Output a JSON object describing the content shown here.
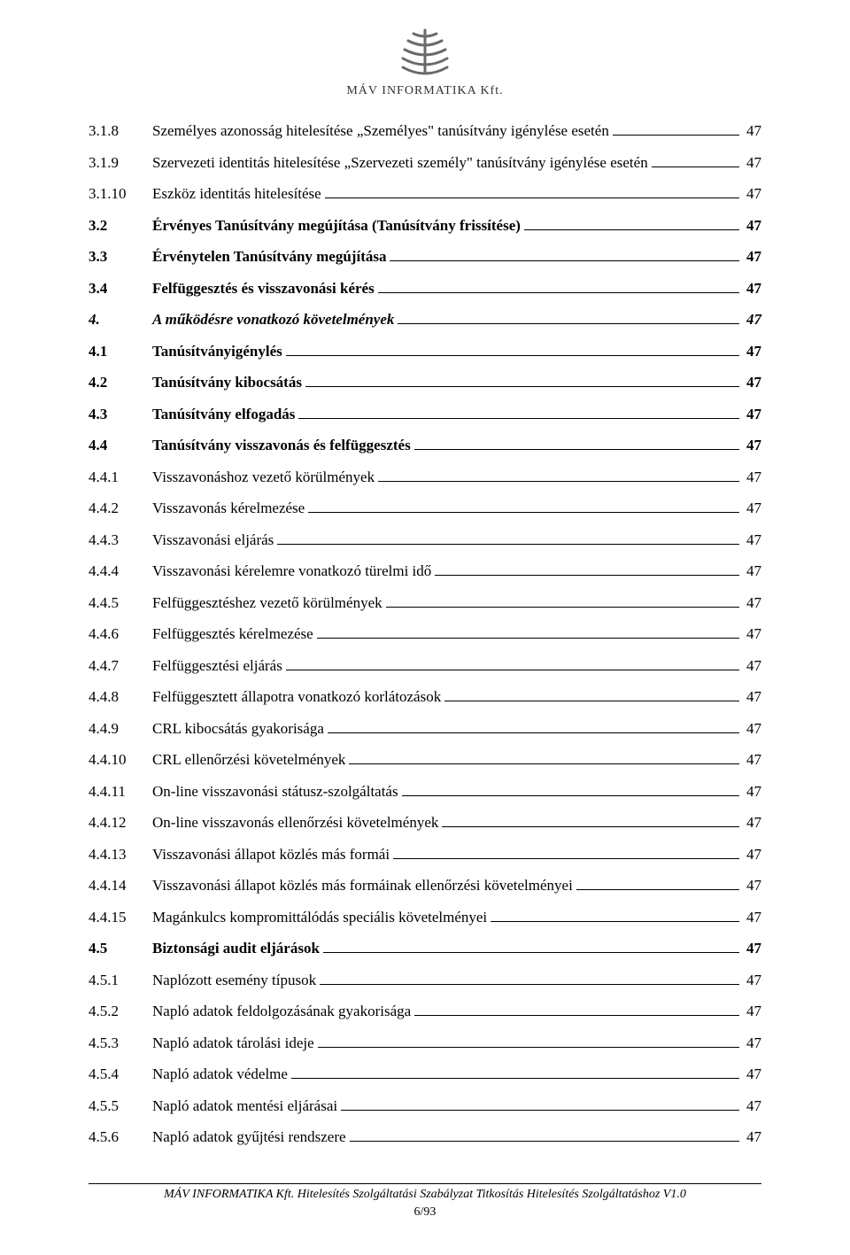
{
  "company_name": "MÁV INFORMATIKA Kft.",
  "logo": {
    "stroke": "#6a6a6a",
    "width": 70,
    "height": 56
  },
  "toc": [
    {
      "num": "3.1.8",
      "title": "Személyes azonosság hitelesítése „Személyes\" tanúsítvány igénylése esetén",
      "page": "47",
      "style": "plain"
    },
    {
      "num": "3.1.9",
      "title": "Szervezeti identitás hitelesítése „Szervezeti személy\" tanúsítvány igénylése esetén",
      "page": "47",
      "style": "plain"
    },
    {
      "num": "3.1.10",
      "title": "Eszköz identitás hitelesítése",
      "page": "47",
      "style": "plain"
    },
    {
      "num": "3.2",
      "title": "Érvényes Tanúsítvány megújítása (Tanúsítvány frissítése)",
      "page": "47",
      "style": "bold"
    },
    {
      "num": "3.3",
      "title": "Érvénytelen Tanúsítvány megújítása",
      "page": "47",
      "style": "bold"
    },
    {
      "num": "3.4",
      "title": "Felfüggesztés és visszavonási kérés",
      "page": "47",
      "style": "bold"
    },
    {
      "num": "4.",
      "title": "A működésre vonatkozó követelmények",
      "page": "47",
      "style": "bolditalic"
    },
    {
      "num": "4.1",
      "title": "Tanúsítványigénylés",
      "page": "47",
      "style": "bold"
    },
    {
      "num": "4.2",
      "title": "Tanúsítvány kibocsátás",
      "page": "47",
      "style": "bold"
    },
    {
      "num": "4.3",
      "title": "Tanúsítvány elfogadás",
      "page": "47",
      "style": "bold"
    },
    {
      "num": "4.4",
      "title": "Tanúsítvány visszavonás és felfüggesztés",
      "page": "47",
      "style": "bold"
    },
    {
      "num": "4.4.1",
      "title": "Visszavonáshoz vezető körülmények",
      "page": "47",
      "style": "plain"
    },
    {
      "num": "4.4.2",
      "title": "Visszavonás kérelmezése",
      "page": "47",
      "style": "plain"
    },
    {
      "num": "4.4.3",
      "title": "Visszavonási eljárás",
      "page": "47",
      "style": "plain"
    },
    {
      "num": "4.4.4",
      "title": "Visszavonási kérelemre vonatkozó türelmi idő",
      "page": "47",
      "style": "plain"
    },
    {
      "num": "4.4.5",
      "title": "Felfüggesztéshez vezető körülmények",
      "page": "47",
      "style": "plain"
    },
    {
      "num": "4.4.6",
      "title": "Felfüggesztés kérelmezése",
      "page": "47",
      "style": "plain"
    },
    {
      "num": "4.4.7",
      "title": "Felfüggesztési eljárás",
      "page": "47",
      "style": "plain"
    },
    {
      "num": "4.4.8",
      "title": "Felfüggesztett állapotra vonatkozó korlátozások",
      "page": "47",
      "style": "plain"
    },
    {
      "num": "4.4.9",
      "title": "CRL kibocsátás gyakorisága",
      "page": "47",
      "style": "plain"
    },
    {
      "num": "4.4.10",
      "title": "CRL ellenőrzési követelmények",
      "page": "47",
      "style": "plain"
    },
    {
      "num": "4.4.11",
      "title": "On-line visszavonási státusz-szolgáltatás",
      "page": "47",
      "style": "plain"
    },
    {
      "num": "4.4.12",
      "title": "On-line visszavonás ellenőrzési követelmények",
      "page": "47",
      "style": "plain"
    },
    {
      "num": "4.4.13",
      "title": "Visszavonási állapot közlés más formái",
      "page": "47",
      "style": "plain"
    },
    {
      "num": "4.4.14",
      "title": "Visszavonási állapot közlés más formáinak ellenőrzési követelményei",
      "page": "47",
      "style": "plain"
    },
    {
      "num": "4.4.15",
      "title": "Magánkulcs kompromittálódás speciális követelményei",
      "page": "47",
      "style": "plain"
    },
    {
      "num": "4.5",
      "title": "Biztonsági audit eljárások",
      "page": "47",
      "style": "bold"
    },
    {
      "num": "4.5.1",
      "title": "Naplózott esemény típusok",
      "page": "47",
      "style": "plain"
    },
    {
      "num": "4.5.2",
      "title": "Napló adatok feldolgozásának gyakorisága",
      "page": "47",
      "style": "plain"
    },
    {
      "num": "4.5.3",
      "title": "Napló adatok tárolási ideje",
      "page": "47",
      "style": "plain"
    },
    {
      "num": "4.5.4",
      "title": "Napló adatok védelme",
      "page": "47",
      "style": "plain"
    },
    {
      "num": "4.5.5",
      "title": "Napló adatok mentési eljárásai",
      "page": "47",
      "style": "plain"
    },
    {
      "num": "4.5.6",
      "title": "Napló adatok gyűjtési rendszere",
      "page": "47",
      "style": "plain"
    }
  ],
  "footer_text": "MÁV INFORMATIKA Kft. Hitelesítés Szolgáltatási Szabályzat Titkosítás Hitelesítés Szolgáltatáshoz V1.0",
  "footer_page": "6/93"
}
